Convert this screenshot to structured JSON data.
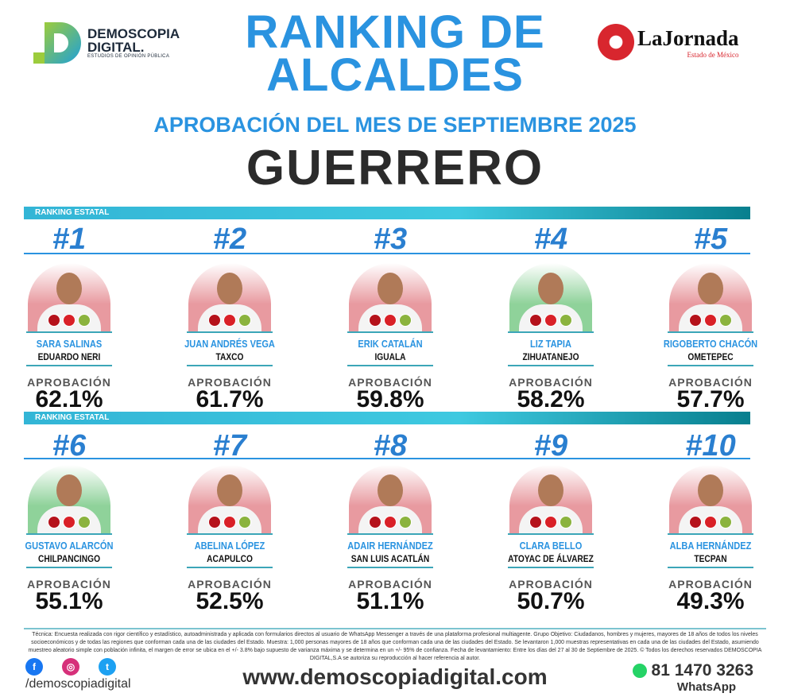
{
  "header": {
    "brand_name": "DEMOSCOPIA",
    "brand_name2": "DIGITAL.",
    "brand_tag": "ESTUDIOS DE OPINIÓN PÚBLICA",
    "title_line1": "RANKING DE",
    "title_line2": "ALCALDES",
    "subtitle": "APROBACIÓN DEL MES DE SEPTIEMBRE 2025",
    "state": "GUERRERO",
    "partner_name": "LaJornada",
    "partner_sub": "Estado de México"
  },
  "section_label": "RANKING ESTATAL",
  "approval_label": "APROBACIÓN",
  "mayors": [
    {
      "rank": "#1",
      "name": "SARA SALINAS",
      "city": "EDUARDO NERI",
      "approval": "62.1%",
      "bg": "#e89aa0"
    },
    {
      "rank": "#2",
      "name": "JUAN ANDRÉS VEGA",
      "city": "TAXCO",
      "approval": "61.7%",
      "bg": "#e89aa0"
    },
    {
      "rank": "#3",
      "name": "ERIK CATALÁN",
      "city": "IGUALA",
      "approval": "59.8%",
      "bg": "#e89aa0"
    },
    {
      "rank": "#4",
      "name": "LIZ TAPIA",
      "city": "ZIHUATANEJO",
      "approval": "58.2%",
      "bg": "#8fd29a"
    },
    {
      "rank": "#5",
      "name": "RIGOBERTO CHACÓN",
      "city": "OMETEPEC",
      "approval": "57.7%",
      "bg": "#e89aa0"
    },
    {
      "rank": "#6",
      "name": "GUSTAVO ALARCÓN",
      "city": "CHILPANCINGO",
      "approval": "55.1%",
      "bg": "#8fd29a"
    },
    {
      "rank": "#7",
      "name": "ABELINA LÓPEZ",
      "city": "ACAPULCO",
      "approval": "52.5%",
      "bg": "#e89aa0"
    },
    {
      "rank": "#8",
      "name": "ADAIR HERNÁNDEZ",
      "city": "SAN LUIS ACATLÁN",
      "approval": "51.1%",
      "bg": "#e89aa0"
    },
    {
      "rank": "#9",
      "name": "CLARA BELLO",
      "city": "ATOYAC DE ÁLVAREZ",
      "approval": "50.7%",
      "bg": "#e89aa0"
    },
    {
      "rank": "#10",
      "name": "ALBA HERNÁNDEZ",
      "city": "TECPAN",
      "approval": "49.3%",
      "bg": "#e89aa0"
    }
  ],
  "footer": {
    "technical": "Técnica: Encuesta realizada con rigor científico y estadístico, autoadministrada y aplicada con formularios directos al usuario de WhatsApp Messenger a través de una plataforma profesional multiagente. Grupo Objetivo: Ciudadanos, hombres y mujeres, mayores de 18 años de todos los niveles socioeconómicos y de todas las regiones que conforman cada una de las ciudades del Estado. Muestra: 1,000 personas mayores de 18 años que conforman cada una de las ciudades del Estado. Se levantaron 1,000 muestras representativas en cada una de las ciudades del Estado, asumiendo muestreo aleatorio simple con población infinita, el margen de error se ubica en el +/- 3.8% bajo supuesto de varianza máxima y se determina en un +/- 95% de confianza. Fecha de levantamiento: Entre los días del 27 al 30 de Septiembre de 2025. © Todos los derechos reservados DEMOSCOPIA DIGITAL,S.A se autoriza su reproducción al hacer referencia al autor.",
    "handle": "/demoscopiadigital",
    "website": "www.demoscopiadigital.com",
    "phone": "81 1470 3263",
    "whatsapp_label": "WhatsApp"
  }
}
